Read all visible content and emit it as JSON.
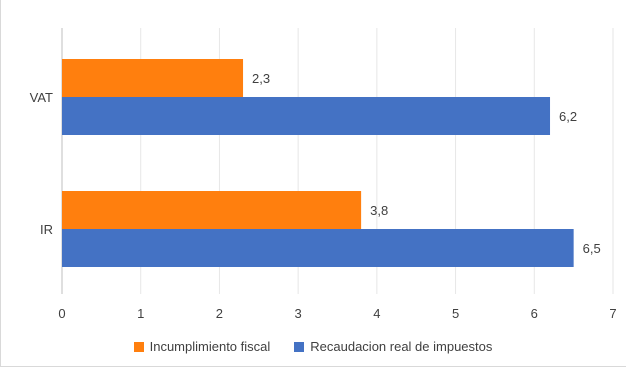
{
  "chart_data": {
    "type": "bar",
    "orientation": "horizontal",
    "categories": [
      "VAT",
      "IR"
    ],
    "series": [
      {
        "name": "Incumplimiento fiscal",
        "values": [
          2.3,
          3.8
        ],
        "labels": [
          "2,3",
          "3,8"
        ],
        "color": "#ff7f0e"
      },
      {
        "name": "Recaudacion real de  impuestos",
        "values": [
          6.2,
          6.5
        ],
        "labels": [
          "6,2",
          "6,5"
        ],
        "color": "#4472c4"
      }
    ],
    "xlim": [
      0,
      7
    ],
    "xticks": [
      "0",
      "1",
      "2",
      "3",
      "4",
      "5",
      "6",
      "7"
    ],
    "gridlines": true,
    "legend_position": "bottom"
  }
}
